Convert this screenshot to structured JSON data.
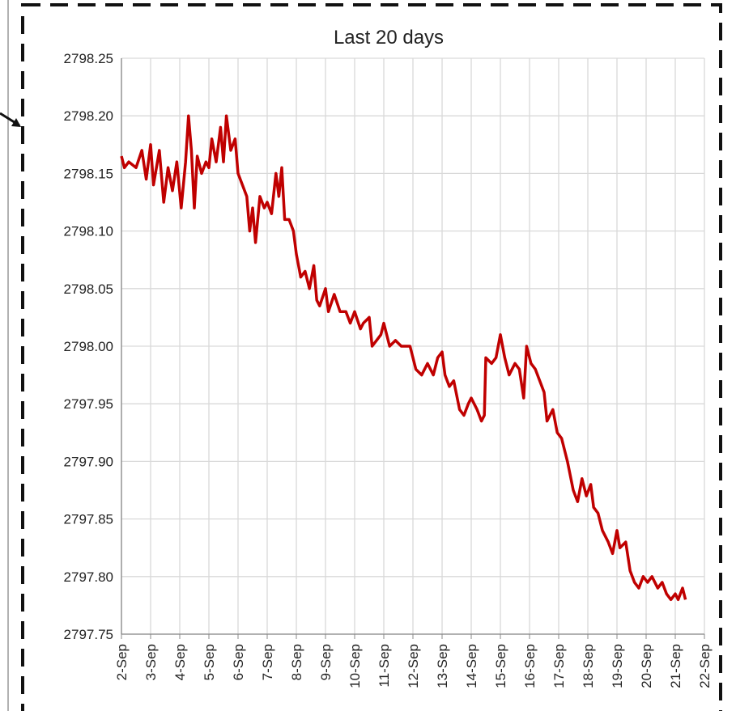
{
  "chart_data": {
    "type": "line",
    "title": "Last 20 days",
    "x": [
      2.0,
      2.1,
      2.25,
      2.5,
      2.7,
      2.85,
      3.0,
      3.1,
      3.3,
      3.45,
      3.6,
      3.75,
      3.9,
      4.05,
      4.2,
      4.3,
      4.4,
      4.5,
      4.6,
      4.75,
      4.9,
      5.0,
      5.1,
      5.25,
      5.4,
      5.5,
      5.6,
      5.75,
      5.9,
      6.0,
      6.15,
      6.3,
      6.4,
      6.5,
      6.6,
      6.75,
      6.9,
      7.0,
      7.15,
      7.3,
      7.4,
      7.5,
      7.6,
      7.75,
      7.9,
      8.0,
      8.15,
      8.3,
      8.45,
      8.6,
      8.7,
      8.8,
      9.0,
      9.1,
      9.3,
      9.5,
      9.7,
      9.85,
      10.0,
      10.2,
      10.3,
      10.5,
      10.6,
      10.75,
      10.9,
      11.0,
      11.2,
      11.4,
      11.6,
      11.75,
      11.9,
      12.1,
      12.3,
      12.5,
      12.7,
      12.85,
      13.0,
      13.1,
      13.25,
      13.4,
      13.6,
      13.75,
      13.9,
      14.0,
      14.2,
      14.35,
      14.45,
      14.5,
      14.7,
      14.85,
      15.0,
      15.15,
      15.3,
      15.5,
      15.65,
      15.8,
      15.9,
      16.05,
      16.2,
      16.35,
      16.5,
      16.6,
      16.8,
      16.95,
      17.1,
      17.3,
      17.5,
      17.65,
      17.8,
      17.95,
      18.1,
      18.2,
      18.35,
      18.5,
      18.7,
      18.85,
      19.0,
      19.1,
      19.3,
      19.45,
      19.6,
      19.75,
      19.9,
      20.05,
      20.2,
      20.4,
      20.55,
      20.7,
      20.85,
      21.0,
      21.1,
      21.25,
      21.35
    ],
    "series": [
      {
        "color": "#c00000",
        "values": [
          2798.165,
          2798.155,
          2798.16,
          2798.155,
          2798.17,
          2798.145,
          2798.175,
          2798.14,
          2798.17,
          2798.125,
          2798.155,
          2798.135,
          2798.16,
          2798.12,
          2798.16,
          2798.2,
          2798.17,
          2798.12,
          2798.165,
          2798.15,
          2798.16,
          2798.155,
          2798.18,
          2798.16,
          2798.19,
          2798.16,
          2798.2,
          2798.17,
          2798.18,
          2798.15,
          2798.14,
          2798.13,
          2798.1,
          2798.12,
          2798.09,
          2798.13,
          2798.12,
          2798.125,
          2798.115,
          2798.15,
          2798.13,
          2798.155,
          2798.11,
          2798.11,
          2798.1,
          2798.08,
          2798.06,
          2798.065,
          2798.05,
          2798.07,
          2798.04,
          2798.035,
          2798.05,
          2798.03,
          2798.045,
          2798.03,
          2798.03,
          2798.02,
          2798.03,
          2798.015,
          2798.02,
          2798.025,
          2798.0,
          2798.005,
          2798.01,
          2798.02,
          2798.0,
          2798.005,
          2798.0,
          2798.0,
          2798.0,
          2797.98,
          2797.975,
          2797.985,
          2797.975,
          2797.99,
          2797.995,
          2797.975,
          2797.965,
          2797.97,
          2797.945,
          2797.94,
          2797.95,
          2797.955,
          2797.945,
          2797.935,
          2797.94,
          2797.99,
          2797.985,
          2797.99,
          2798.01,
          2797.99,
          2797.975,
          2797.985,
          2797.98,
          2797.955,
          2798.0,
          2797.985,
          2797.98,
          2797.97,
          2797.96,
          2797.935,
          2797.945,
          2797.925,
          2797.92,
          2797.9,
          2797.875,
          2797.865,
          2797.885,
          2797.87,
          2797.88,
          2797.86,
          2797.855,
          2797.84,
          2797.83,
          2797.82,
          2797.84,
          2797.825,
          2797.83,
          2797.805,
          2797.795,
          2797.79,
          2797.8,
          2797.795,
          2797.8,
          2797.79,
          2797.795,
          2797.785,
          2797.78,
          2797.785,
          2797.78,
          2797.79,
          2797.78
        ]
      }
    ],
    "xlim": [
      2,
      22
    ],
    "xticks": [
      {
        "value": 2,
        "label": "2-Sep"
      },
      {
        "value": 3,
        "label": "3-Sep"
      },
      {
        "value": 4,
        "label": "4-Sep"
      },
      {
        "value": 5,
        "label": "5-Sep"
      },
      {
        "value": 6,
        "label": "6-Sep"
      },
      {
        "value": 7,
        "label": "7-Sep"
      },
      {
        "value": 8,
        "label": "8-Sep"
      },
      {
        "value": 9,
        "label": "9-Sep"
      },
      {
        "value": 10,
        "label": "10-Sep"
      },
      {
        "value": 11,
        "label": "11-Sep"
      },
      {
        "value": 12,
        "label": "12-Sep"
      },
      {
        "value": 13,
        "label": "13-Sep"
      },
      {
        "value": 14,
        "label": "14-Sep"
      },
      {
        "value": 15,
        "label": "15-Sep"
      },
      {
        "value": 16,
        "label": "16-Sep"
      },
      {
        "value": 17,
        "label": "17-Sep"
      },
      {
        "value": 18,
        "label": "18-Sep"
      },
      {
        "value": 19,
        "label": "19-Sep"
      },
      {
        "value": 20,
        "label": "20-Sep"
      },
      {
        "value": 21,
        "label": "21-Sep"
      },
      {
        "value": 22,
        "label": "22-Sep"
      }
    ],
    "ylim": [
      2797.75,
      2798.25
    ],
    "yticks": [
      2797.75,
      {
        "value": 2797.8,
        "label": "2797.80"
      },
      2797.85,
      {
        "value": 2797.9,
        "label": "2797.90"
      },
      2797.95,
      {
        "value": 2798.0,
        "label": "2798.00"
      },
      2798.05,
      {
        "value": 2798.1,
        "label": "2798.10"
      },
      2798.15,
      {
        "value": 2798.2,
        "label": "2798.20"
      },
      2798.25
    ],
    "grid": true
  }
}
